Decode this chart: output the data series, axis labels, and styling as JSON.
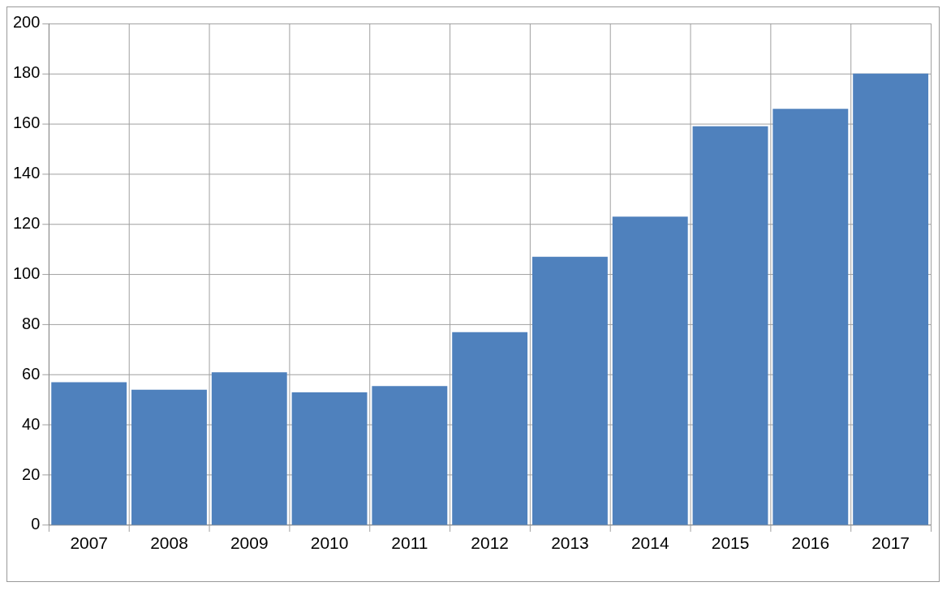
{
  "chart_data": {
    "type": "bar",
    "categories": [
      "2007",
      "2008",
      "2009",
      "2010",
      "2011",
      "2012",
      "2013",
      "2014",
      "2015",
      "2016",
      "2017"
    ],
    "values": [
      57,
      54,
      61,
      53,
      55.5,
      77,
      107,
      123,
      159,
      166,
      180
    ],
    "color": "#4f81bd",
    "ylim": [
      0,
      200
    ],
    "yticks": [
      0,
      20,
      40,
      60,
      80,
      100,
      120,
      140,
      160,
      180,
      200
    ],
    "grid": true
  }
}
